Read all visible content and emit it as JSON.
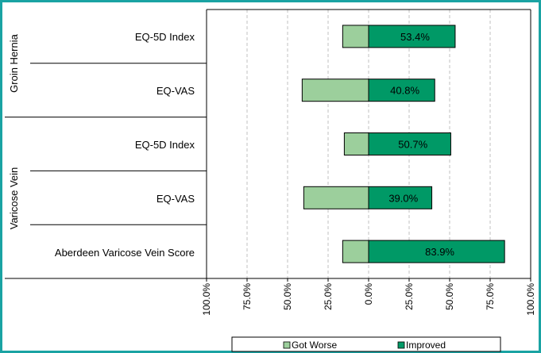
{
  "chart_data": {
    "type": "bar",
    "orientation": "horizontal",
    "stacked": "diverging",
    "title": "",
    "xlabel": "",
    "ylabel": "",
    "xlim": [
      -100,
      100
    ],
    "x_ticks": [
      "100.0%",
      "75.0%",
      "50.0%",
      "25.0%",
      "0.0%",
      "25.0%",
      "50.0%",
      "75.0%",
      "100.0%"
    ],
    "tick_values": [
      -100,
      -75,
      -50,
      -25,
      0,
      25,
      50,
      75,
      100
    ],
    "grid": true,
    "legend_position": "bottom",
    "groups": [
      {
        "name": "Groin Hernia",
        "categories": [
          "EQ-5D Index",
          "EQ-VAS"
        ]
      },
      {
        "name": "Varicose Vein",
        "categories": [
          "EQ-5D Index",
          "EQ-VAS",
          "Aberdeen  Varicose Vein Score"
        ]
      }
    ],
    "series": [
      {
        "name": "Got Worse",
        "values": [
          -16,
          -41,
          -15,
          -40,
          -16
        ],
        "color": "#9ccf9c"
      },
      {
        "name": "Improved",
        "values": [
          53.4,
          40.8,
          50.7,
          39.0,
          83.9
        ],
        "color": "#009966"
      }
    ],
    "data_labels": [
      "53.4%",
      "40.8%",
      "50.7%",
      "39.0%",
      "83.9%"
    ]
  },
  "colors": {
    "frame": "#1aa3a3",
    "grid": "#c0c0c0"
  }
}
